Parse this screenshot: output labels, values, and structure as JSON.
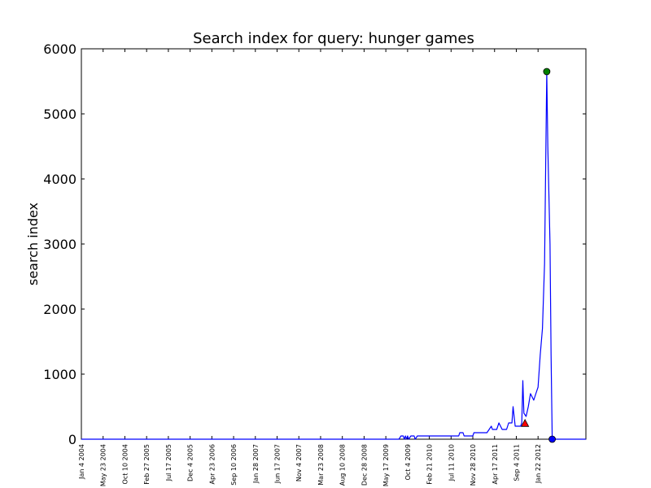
{
  "chart_data": {
    "type": "line",
    "title": "Search index for query: hunger games",
    "xlabel": "",
    "ylabel": "search index",
    "ylim": [
      0,
      6000
    ],
    "xlim": [
      "2004-01-04",
      "2012-11-25"
    ],
    "yticks": [
      0,
      1000,
      2000,
      3000,
      4000,
      5000,
      6000
    ],
    "x_tick_labels": [
      {
        "date": "2004-01-04",
        "label": "Jan 4 2004"
      },
      {
        "date": "2004-05-23",
        "label": "May 23 2004"
      },
      {
        "date": "2004-10-10",
        "label": "Oct 10 2004"
      },
      {
        "date": "2005-02-27",
        "label": "Feb 27 2005"
      },
      {
        "date": "2005-07-17",
        "label": "Jul 17 2005"
      },
      {
        "date": "2005-12-04",
        "label": "Dec 4 2005"
      },
      {
        "date": "2006-04-23",
        "label": "Apr 23 2006"
      },
      {
        "date": "2006-09-10",
        "label": "Sep 10 2006"
      },
      {
        "date": "2007-01-28",
        "label": "Jan 28 2007"
      },
      {
        "date": "2007-06-17",
        "label": "Jun 17 2007"
      },
      {
        "date": "2007-11-04",
        "label": "Nov 4 2007"
      },
      {
        "date": "2008-03-23",
        "label": "Mar 23 2008"
      },
      {
        "date": "2008-08-10",
        "label": "Aug 10 2008"
      },
      {
        "date": "2008-12-28",
        "label": "Dec 28 2008"
      },
      {
        "date": "2009-05-17",
        "label": "May 17 2009"
      },
      {
        "date": "2009-10-04",
        "label": "Oct 4 2009"
      },
      {
        "date": "2010-02-21",
        "label": "Feb 21 2010"
      },
      {
        "date": "2010-07-11",
        "label": "Jul 11 2010"
      },
      {
        "date": "2010-11-28",
        "label": "Nov 28 2010"
      },
      {
        "date": "2011-04-17",
        "label": "Apr 17 2011"
      },
      {
        "date": "2011-09-04",
        "label": "Sep 4 2011"
      },
      {
        "date": "2012-01-22",
        "label": "Jan 22 2012"
      }
    ],
    "series": [
      {
        "color": "#0000ff",
        "points": [
          [
            "2004-01-04",
            0
          ],
          [
            "2009-08-09",
            0
          ],
          [
            "2009-08-23",
            50
          ],
          [
            "2009-09-06",
            50
          ],
          [
            "2009-09-13",
            0
          ],
          [
            "2009-09-20",
            50
          ],
          [
            "2009-09-27",
            0
          ],
          [
            "2009-10-04",
            50
          ],
          [
            "2009-10-11",
            0
          ],
          [
            "2009-10-25",
            50
          ],
          [
            "2009-11-15",
            50
          ],
          [
            "2009-11-22",
            0
          ],
          [
            "2009-12-06",
            50
          ],
          [
            "2010-08-29",
            50
          ],
          [
            "2010-09-05",
            100
          ],
          [
            "2010-09-26",
            100
          ],
          [
            "2010-10-03",
            50
          ],
          [
            "2010-11-28",
            50
          ],
          [
            "2010-12-05",
            100
          ],
          [
            "2011-02-27",
            100
          ],
          [
            "2011-03-13",
            150
          ],
          [
            "2011-03-27",
            200
          ],
          [
            "2011-04-03",
            150
          ],
          [
            "2011-05-01",
            150
          ],
          [
            "2011-05-15",
            250
          ],
          [
            "2011-06-05",
            150
          ],
          [
            "2011-07-03",
            150
          ],
          [
            "2011-07-17",
            250
          ],
          [
            "2011-08-07",
            250
          ],
          [
            "2011-08-14",
            500
          ],
          [
            "2011-08-28",
            200
          ],
          [
            "2011-09-04",
            200
          ],
          [
            "2011-10-02",
            200
          ],
          [
            "2011-10-09",
            250
          ],
          [
            "2011-10-16",
            900
          ],
          [
            "2011-10-23",
            400
          ],
          [
            "2011-11-06",
            350
          ],
          [
            "2011-11-20",
            500
          ],
          [
            "2011-12-04",
            700
          ],
          [
            "2011-12-25",
            600
          ],
          [
            "2012-01-08",
            700
          ],
          [
            "2012-01-22",
            800
          ],
          [
            "2012-02-05",
            1300
          ],
          [
            "2012-02-19",
            1700
          ],
          [
            "2012-03-04",
            2700
          ],
          [
            "2012-03-18",
            5650
          ],
          [
            "2012-03-25",
            4500
          ],
          [
            "2012-04-08",
            3000
          ],
          [
            "2012-04-15",
            1300
          ],
          [
            "2012-04-22",
            0
          ],
          [
            "2012-11-25",
            0
          ]
        ]
      }
    ],
    "markers": [
      {
        "date": "2011-10-30",
        "value": 240,
        "shape": "triangle",
        "color": "#ff0000"
      },
      {
        "date": "2012-03-18",
        "value": 5650,
        "shape": "circle",
        "color": "#008000"
      },
      {
        "date": "2012-04-22",
        "value": 0,
        "shape": "circle",
        "color": "#0000ff"
      }
    ],
    "grid": false,
    "line_color": "#0000ff",
    "axis_color": "#000000"
  }
}
